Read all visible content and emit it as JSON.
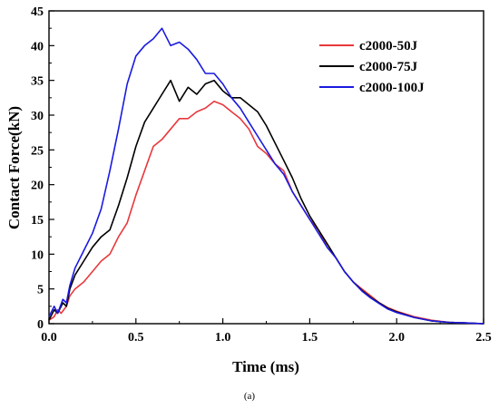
{
  "chart_data": {
    "type": "line",
    "xlabel": "Time (ms)",
    "ylabel": "Contact Force(kN)",
    "xlim": [
      0,
      2.5
    ],
    "ylim": [
      0,
      45
    ],
    "xticks": [
      "0.0",
      "0.5",
      "1.0",
      "1.5",
      "2.0",
      "2.5"
    ],
    "yticks": [
      "0",
      "5",
      "10",
      "15",
      "20",
      "25",
      "30",
      "35",
      "40",
      "45"
    ],
    "grid": false,
    "legend_position": "top-right",
    "caption": "(a)",
    "series": [
      {
        "name": "c2000-50J",
        "color": "#e8383d",
        "x": [
          0.0,
          0.03,
          0.05,
          0.07,
          0.1,
          0.12,
          0.15,
          0.2,
          0.25,
          0.3,
          0.35,
          0.4,
          0.45,
          0.5,
          0.55,
          0.6,
          0.65,
          0.7,
          0.75,
          0.8,
          0.85,
          0.9,
          0.95,
          1.0,
          1.05,
          1.1,
          1.15,
          1.2,
          1.25,
          1.3,
          1.35,
          1.4,
          1.45,
          1.5,
          1.55,
          1.6,
          1.65,
          1.7,
          1.75,
          1.8,
          1.85,
          1.9,
          1.95,
          2.0,
          2.1,
          2.2,
          2.3,
          2.4,
          2.5
        ],
        "y": [
          0.5,
          1.0,
          2.0,
          1.5,
          2.5,
          4.0,
          5.0,
          6.0,
          7.5,
          9.0,
          10.0,
          12.5,
          14.5,
          18.5,
          22.0,
          25.5,
          26.5,
          28.0,
          29.5,
          29.5,
          30.5,
          31.0,
          32.0,
          31.5,
          30.5,
          29.5,
          28.0,
          25.5,
          24.5,
          23.0,
          22.0,
          19.0,
          17.0,
          15.0,
          13.5,
          11.0,
          9.5,
          7.5,
          6.0,
          5.0,
          4.0,
          3.0,
          2.3,
          1.8,
          1.0,
          0.5,
          0.2,
          0.1,
          0.0
        ]
      },
      {
        "name": "c2000-75J",
        "color": "#000000",
        "x": [
          0.0,
          0.03,
          0.05,
          0.08,
          0.1,
          0.12,
          0.15,
          0.2,
          0.25,
          0.3,
          0.35,
          0.4,
          0.45,
          0.5,
          0.55,
          0.6,
          0.65,
          0.7,
          0.75,
          0.8,
          0.85,
          0.9,
          0.95,
          1.0,
          1.05,
          1.1,
          1.15,
          1.2,
          1.25,
          1.3,
          1.35,
          1.4,
          1.45,
          1.5,
          1.55,
          1.6,
          1.65,
          1.7,
          1.75,
          1.8,
          1.85,
          1.9,
          1.95,
          2.0,
          2.1,
          2.2,
          2.3,
          2.4,
          2.5
        ],
        "y": [
          0.5,
          2.0,
          1.5,
          3.0,
          2.5,
          5.0,
          7.0,
          9.0,
          11.0,
          12.5,
          13.5,
          17.0,
          21.0,
          25.5,
          29.0,
          31.0,
          33.0,
          35.0,
          32.0,
          34.0,
          33.0,
          34.5,
          35.0,
          33.5,
          32.5,
          32.5,
          31.5,
          30.5,
          28.5,
          26.0,
          23.5,
          21.0,
          18.0,
          15.5,
          13.5,
          11.5,
          9.5,
          7.5,
          6.0,
          4.8,
          3.8,
          3.0,
          2.2,
          1.7,
          0.9,
          0.4,
          0.2,
          0.1,
          0.0
        ]
      },
      {
        "name": "c2000-100J",
        "color": "#1a1ae0",
        "x": [
          0.0,
          0.03,
          0.05,
          0.08,
          0.1,
          0.12,
          0.15,
          0.2,
          0.25,
          0.3,
          0.35,
          0.4,
          0.45,
          0.5,
          0.55,
          0.6,
          0.65,
          0.7,
          0.75,
          0.8,
          0.85,
          0.9,
          0.95,
          1.0,
          1.05,
          1.1,
          1.15,
          1.2,
          1.25,
          1.3,
          1.35,
          1.4,
          1.45,
          1.5,
          1.55,
          1.6,
          1.65,
          1.7,
          1.75,
          1.8,
          1.85,
          1.9,
          1.95,
          2.0,
          2.1,
          2.2,
          2.3,
          2.4,
          2.5
        ],
        "y": [
          1.0,
          2.5,
          1.5,
          3.5,
          3.0,
          5.5,
          8.0,
          10.5,
          13.0,
          16.5,
          22.0,
          28.0,
          34.5,
          38.5,
          40.0,
          41.0,
          42.5,
          40.0,
          40.5,
          39.5,
          38.0,
          36.0,
          36.0,
          34.5,
          32.5,
          31.0,
          29.0,
          27.0,
          25.0,
          23.0,
          21.5,
          19.0,
          17.0,
          15.0,
          13.0,
          11.0,
          9.5,
          7.5,
          6.0,
          4.7,
          3.7,
          2.9,
          2.1,
          1.6,
          0.9,
          0.4,
          0.2,
          0.1,
          0.0
        ]
      }
    ]
  }
}
